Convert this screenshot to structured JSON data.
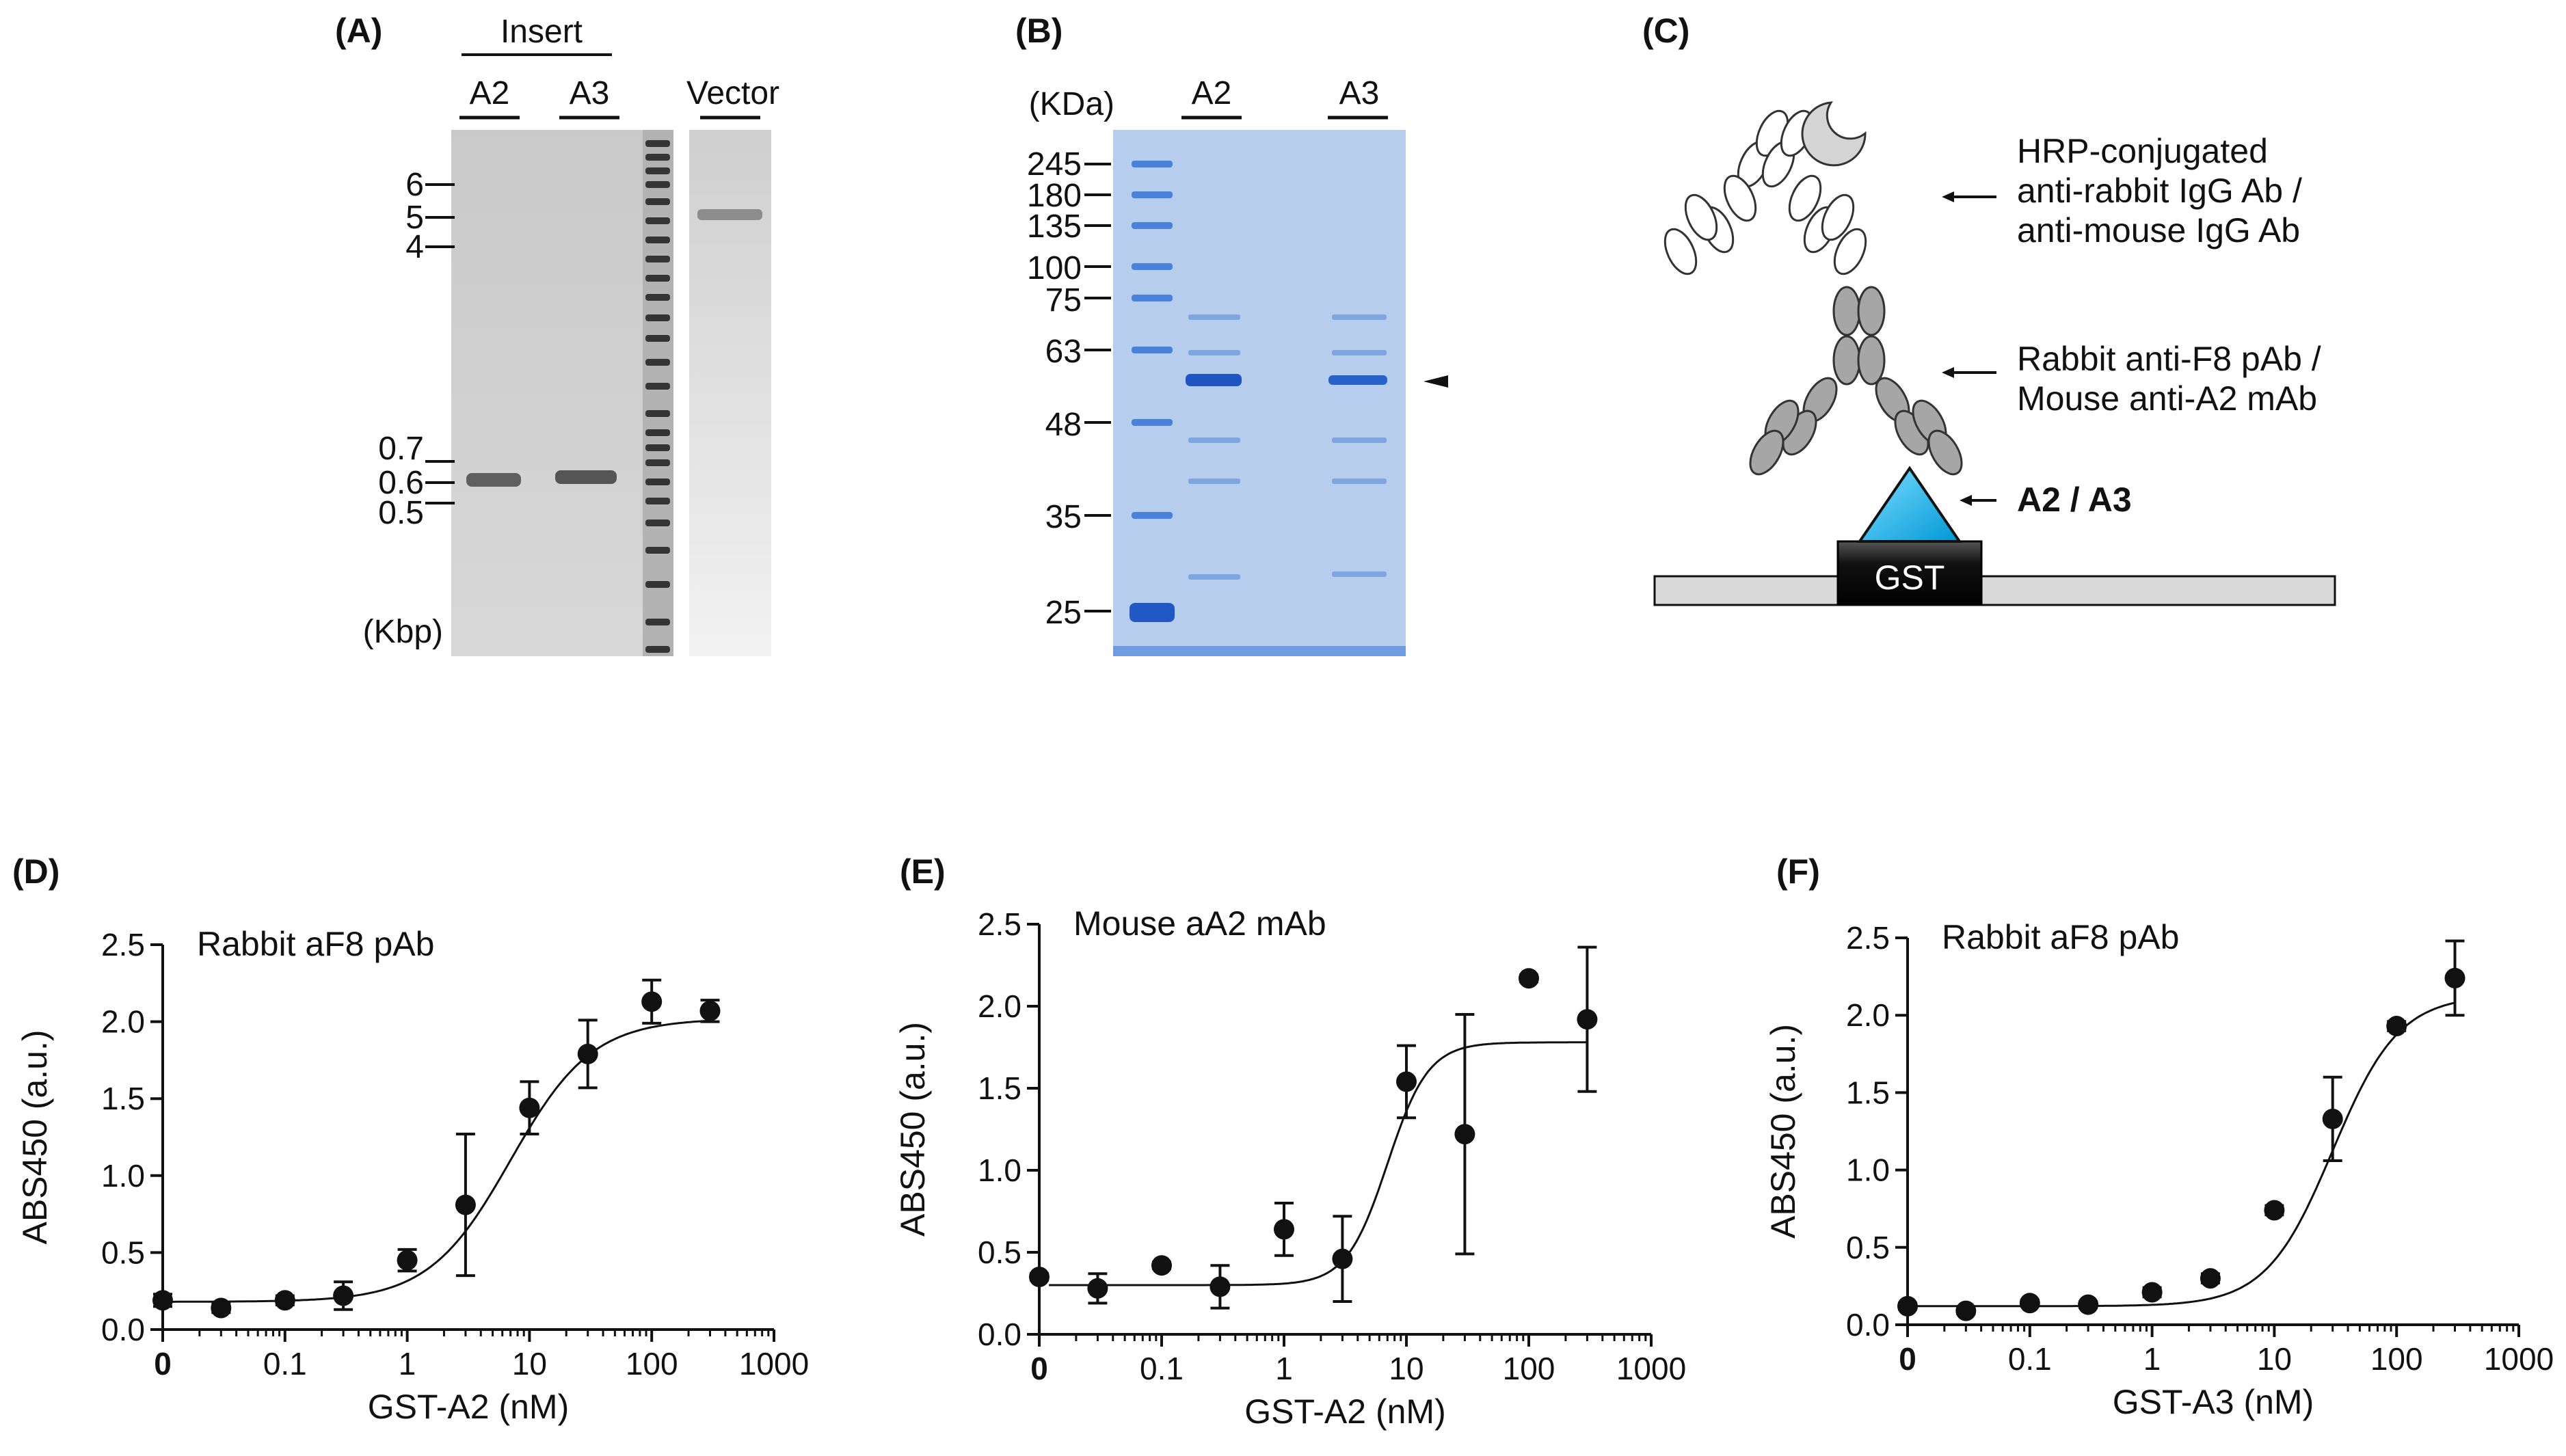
{
  "panels": {
    "A": {
      "label": "(A)",
      "insert_label": "Insert",
      "lanes": [
        "A2",
        "A3"
      ],
      "vector_label": "Vector",
      "markers": [
        "6",
        "5",
        "4",
        "0.7",
        "0.6",
        "0.5"
      ],
      "unit": "(Kbp)"
    },
    "B": {
      "label": "(B)",
      "unit": "(KDa)",
      "lanes": [
        "A2",
        "A3"
      ],
      "markers": [
        "245",
        "180",
        "135",
        "100",
        "75",
        "63",
        "48",
        "35",
        "25"
      ]
    },
    "C": {
      "label": "(C)",
      "secondary_ab": [
        "HRP-conjugated",
        "anti-rabbit IgG  Ab /",
        "anti-mouse IgG Ab"
      ],
      "primary_ab": [
        "Rabbit anti-F8 pAb /",
        "Mouse anti-A2 mAb"
      ],
      "antigen": "A2 / A3",
      "tag": "GST"
    },
    "D": {
      "label": "(D)"
    },
    "E": {
      "label": "(E)"
    },
    "F": {
      "label": "(F)"
    }
  },
  "chart_data": [
    {
      "panel": "D",
      "type": "scatter",
      "annotation": "Rabbit aF8 pAb",
      "xlabel": "GST-A2 (nM)",
      "ylabel": "ABS450 (a.u.)",
      "x_scale": "log",
      "xlim": [
        0.01,
        1000
      ],
      "ylim": [
        0,
        2.5
      ],
      "x_ticks": [
        "0",
        "0.1",
        "1",
        "10",
        "100",
        "1000"
      ],
      "y_ticks": [
        "0.0",
        "0.5",
        "1.0",
        "1.5",
        "2.0",
        "2.5"
      ],
      "x": [
        0.01,
        0.03,
        0.1,
        0.3,
        1,
        3,
        10,
        30,
        100,
        300
      ],
      "y": [
        0.19,
        0.14,
        0.19,
        0.22,
        0.45,
        0.81,
        1.44,
        1.79,
        2.13,
        2.07
      ],
      "err": [
        0.04,
        0.03,
        0.03,
        0.09,
        0.07,
        0.46,
        0.17,
        0.22,
        0.14,
        0.07
      ],
      "fit": {
        "bottom": 0.18,
        "top": 2.02,
        "ec50": 7.0,
        "hill": 1.3
      }
    },
    {
      "panel": "E",
      "type": "scatter",
      "annotation": "Mouse aA2 mAb",
      "xlabel": "GST-A2 (nM)",
      "ylabel": "ABS450 (a.u.)",
      "x_scale": "log",
      "xlim": [
        0.01,
        1000
      ],
      "ylim": [
        0,
        2.5
      ],
      "x_ticks": [
        "0",
        "0.1",
        "1",
        "10",
        "100",
        "1000"
      ],
      "y_ticks": [
        "0.0",
        "0.5",
        "1.0",
        "1.5",
        "2.0",
        "2.5"
      ],
      "x": [
        0.01,
        0.03,
        0.1,
        0.3,
        1,
        3,
        10,
        30,
        100,
        300
      ],
      "y": [
        0.35,
        0.28,
        0.42,
        0.29,
        0.64,
        0.46,
        1.54,
        1.22,
        2.17,
        1.92
      ],
      "err": [
        0.02,
        0.09,
        0.02,
        0.13,
        0.16,
        0.26,
        0.22,
        0.73,
        0.02,
        0.44
      ],
      "fit": {
        "bottom": 0.3,
        "top": 1.78,
        "ec50": 7.0,
        "hill": 2.6
      }
    },
    {
      "panel": "F",
      "type": "scatter",
      "annotation": "Rabbit aF8 pAb",
      "xlabel": "GST-A3 (nM)",
      "ylabel": "ABS450 (a.u.)",
      "x_scale": "log",
      "xlim": [
        0.01,
        1000
      ],
      "ylim": [
        0,
        2.5
      ],
      "x_ticks": [
        "0",
        "0.1",
        "1",
        "10",
        "100",
        "1000"
      ],
      "y_ticks": [
        "0.0",
        "0.5",
        "1.0",
        "1.5",
        "2.0",
        "2.5"
      ],
      "x": [
        0.01,
        0.03,
        0.1,
        0.3,
        1,
        3,
        10,
        30,
        100,
        300
      ],
      "y": [
        0.12,
        0.09,
        0.14,
        0.13,
        0.21,
        0.3,
        0.74,
        1.33,
        1.93,
        2.24
      ],
      "err": [
        0.02,
        0.02,
        0.02,
        0.02,
        0.03,
        0.03,
        0.03,
        0.27,
        0.03,
        0.24
      ],
      "fit": {
        "bottom": 0.12,
        "top": 2.13,
        "ec50": 30.0,
        "hill": 1.6
      }
    }
  ]
}
